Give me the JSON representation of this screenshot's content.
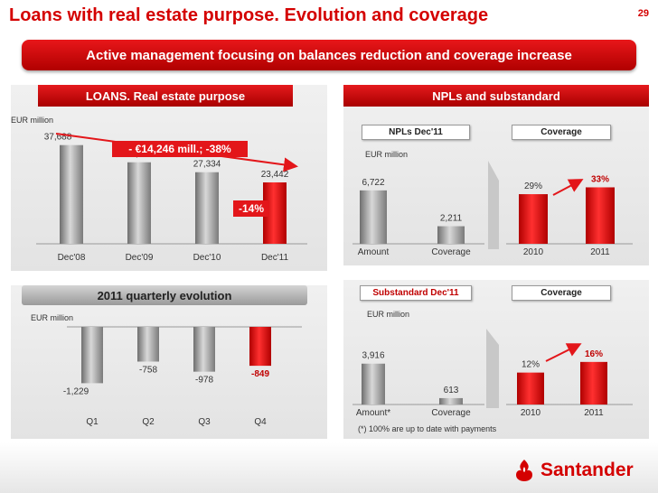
{
  "title": "Loans with real estate purpose. Evolution and coverage",
  "page_number": "29",
  "banner": "Active management focusing on balances reduction and coverage increase",
  "left_top": {
    "header": "LOANS. Real estate purpose",
    "unit": "EUR million",
    "callout_total": "- €14,246 mill.; -38%",
    "callout_last": "-14%"
  },
  "left_bottom": {
    "header": "2011 quarterly evolution",
    "unit": "EUR million"
  },
  "right_top": {
    "header": "NPLs and substandard",
    "npl_label": "NPLs Dec'11",
    "coverage_label": "Coverage",
    "unit": "EUR million"
  },
  "right_bottom": {
    "sub_label": "Substandard Dec'11",
    "coverage_label": "Coverage",
    "unit": "EUR million",
    "footnote": "(*) 100% are up to date with payments"
  },
  "brand": "Santander",
  "colors": {
    "red": "#d40000",
    "bar_grey": "#8a8a8a"
  },
  "chart_data": [
    {
      "type": "bar",
      "categories": [
        "Dec'08",
        "Dec'09",
        "Dec'10",
        "Dec'11"
      ],
      "values": [
        37688,
        31127,
        27334,
        23442
      ],
      "value_labels": [
        "37,688",
        "31,127",
        "27,334",
        "23,442"
      ],
      "ylim": [
        0,
        40000
      ]
    },
    {
      "type": "bar",
      "categories": [
        "Q1",
        "Q2",
        "Q3",
        "Q4"
      ],
      "values": [
        -1229,
        -758,
        -978,
        -849
      ],
      "value_labels": [
        "-1,229",
        "-758",
        "-978",
        "-849"
      ],
      "ylim": [
        -1300,
        0
      ]
    },
    {
      "type": "bar",
      "categories": [
        "Amount",
        "Coverage"
      ],
      "values": [
        6722,
        2211
      ],
      "value_labels": [
        "6,722",
        "2,211"
      ],
      "ylim": [
        0,
        7500
      ]
    },
    {
      "type": "bar",
      "categories": [
        "2010",
        "2011"
      ],
      "values": [
        29,
        33
      ],
      "value_labels": [
        "29%",
        "33%"
      ],
      "ylim": [
        0,
        38
      ]
    },
    {
      "type": "bar",
      "categories": [
        "Amount*",
        "Coverage"
      ],
      "values": [
        3916,
        613
      ],
      "value_labels": [
        "3,916",
        "613"
      ],
      "ylim": [
        0,
        4500
      ]
    },
    {
      "type": "bar",
      "categories": [
        "2010",
        "2011"
      ],
      "values": [
        12,
        16
      ],
      "value_labels": [
        "12%",
        "16%"
      ],
      "ylim": [
        0,
        19
      ]
    }
  ]
}
